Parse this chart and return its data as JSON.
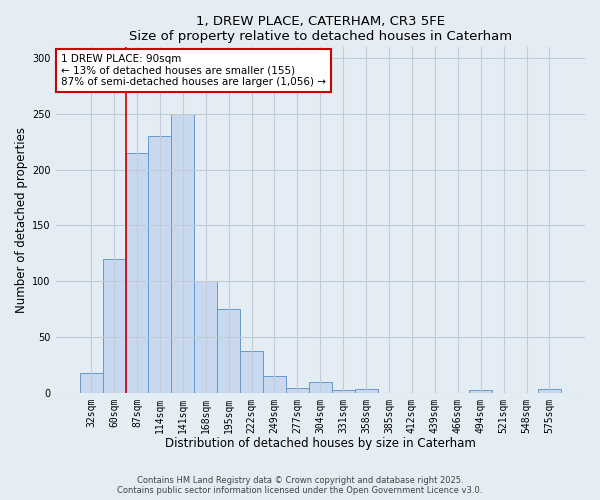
{
  "title": "1, DREW PLACE, CATERHAM, CR3 5FE",
  "subtitle": "Size of property relative to detached houses in Caterham",
  "xlabel": "Distribution of detached houses by size in Caterham",
  "ylabel": "Number of detached properties",
  "bins": [
    "32sqm",
    "60sqm",
    "87sqm",
    "114sqm",
    "141sqm",
    "168sqm",
    "195sqm",
    "222sqm",
    "249sqm",
    "277sqm",
    "304sqm",
    "331sqm",
    "358sqm",
    "385sqm",
    "412sqm",
    "439sqm",
    "466sqm",
    "494sqm",
    "521sqm",
    "548sqm",
    "575sqm"
  ],
  "values": [
    18,
    120,
    215,
    230,
    250,
    100,
    75,
    37,
    15,
    4,
    10,
    2,
    3,
    0,
    0,
    0,
    0,
    2,
    0,
    0,
    3
  ],
  "bar_color": "#c8d8ee",
  "bar_edge_color": "#6699cc",
  "vline_index": 2,
  "vline_color": "#cc0000",
  "annotation_line1": "1 DREW PLACE: 90sqm",
  "annotation_line2": "← 13% of detached houses are smaller (155)",
  "annotation_line3": "87% of semi-detached houses are larger (1,056) →",
  "annotation_box_facecolor": "#ffffff",
  "annotation_box_edgecolor": "#cc0000",
  "ylim": [
    0,
    310
  ],
  "yticks": [
    0,
    50,
    100,
    150,
    200,
    250,
    300
  ],
  "footer_line1": "Contains HM Land Registry data © Crown copyright and database right 2025.",
  "footer_line2": "Contains public sector information licensed under the Open Government Licence v3.0.",
  "bg_color": "#e4ecf4",
  "plot_bg_color": "#e4ecf4",
  "grid_color": "#c0ccd8"
}
